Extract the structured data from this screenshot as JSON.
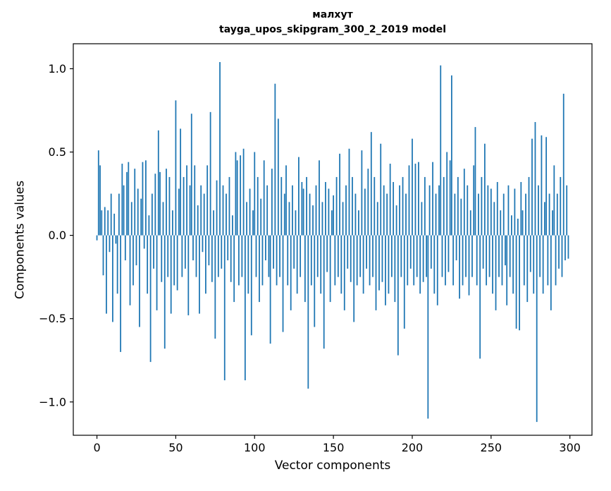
{
  "title": "малхут",
  "subtitle": "tayga_upos_skipgram_300_2_2019 model",
  "chart_data": {
    "type": "bar",
    "title": "малхут",
    "subtitle": "tayga_upos_skipgram_300_2_2019 model",
    "xlabel": "Vector components",
    "ylabel": "Components values",
    "x_ticks": [
      0,
      50,
      100,
      150,
      200,
      250,
      300
    ],
    "y_ticks": [
      -1.0,
      -0.5,
      0.0,
      0.5,
      1.0
    ],
    "xlim": [
      -15,
      314
    ],
    "ylim": [
      -1.2,
      1.15
    ],
    "bar_color": "#1f77b4",
    "grid": false,
    "legend": "none",
    "n_components": 300,
    "values": [
      -0.03,
      0.51,
      0.42,
      0.15,
      -0.24,
      0.17,
      -0.47,
      0.15,
      -0.1,
      0.25,
      -0.52,
      0.13,
      -0.05,
      -0.35,
      0.25,
      -0.7,
      0.43,
      0.3,
      -0.15,
      0.38,
      0.44,
      -0.42,
      0.2,
      -0.3,
      0.4,
      -0.18,
      0.28,
      -0.55,
      0.22,
      0.44,
      -0.08,
      0.45,
      -0.35,
      0.12,
      -0.76,
      0.25,
      -0.2,
      0.37,
      -0.45,
      0.63,
      0.38,
      -0.28,
      0.2,
      -0.68,
      0.4,
      -0.25,
      0.35,
      -0.47,
      0.15,
      -0.3,
      0.81,
      -0.33,
      0.28,
      0.64,
      -0.25,
      0.35,
      -0.2,
      0.42,
      -0.48,
      0.3,
      0.73,
      -0.15,
      0.42,
      -0.25,
      0.18,
      -0.47,
      0.3,
      -0.1,
      0.25,
      -0.35,
      0.42,
      -0.18,
      0.74,
      -0.28,
      0.15,
      -0.62,
      0.33,
      -0.25,
      1.04,
      -0.2,
      0.3,
      -0.87,
      0.25,
      -0.15,
      0.35,
      -0.28,
      0.12,
      -0.4,
      0.5,
      0.45,
      -0.3,
      0.48,
      -0.25,
      0.52,
      -0.87,
      0.2,
      -0.35,
      0.28,
      -0.6,
      0.15,
      0.5,
      -0.25,
      0.35,
      -0.4,
      0.22,
      -0.3,
      0.45,
      -0.15,
      0.3,
      -0.25,
      -0.65,
      0.4,
      -0.2,
      0.91,
      -0.3,
      0.7,
      -0.25,
      0.35,
      -0.58,
      0.25,
      0.42,
      -0.3,
      0.2,
      -0.45,
      0.3,
      -0.2,
      0.15,
      -0.35,
      0.47,
      -0.25,
      0.32,
      0.28,
      -0.4,
      0.35,
      -0.92,
      0.25,
      -0.3,
      0.18,
      -0.55,
      0.3,
      -0.25,
      0.45,
      -0.35,
      0.2,
      -0.68,
      0.32,
      -0.22,
      0.28,
      -0.4,
      0.15,
      0.24,
      -0.3,
      0.35,
      -0.25,
      0.49,
      -0.35,
      0.2,
      -0.45,
      0.3,
      -0.2,
      0.52,
      -0.28,
      0.35,
      -0.52,
      0.25,
      -0.3,
      0.15,
      -0.25,
      0.51,
      -0.35,
      0.28,
      -0.2,
      0.4,
      -0.3,
      0.62,
      -0.25,
      0.35,
      -0.45,
      0.2,
      -0.33,
      0.55,
      -0.28,
      0.3,
      -0.42,
      0.25,
      -0.35,
      0.43,
      -0.25,
      0.32,
      -0.4,
      0.18,
      -0.72,
      0.3,
      -0.25,
      0.35,
      -0.56,
      0.25,
      -0.3,
      0.42,
      -0.2,
      0.58,
      -0.3,
      0.43,
      -0.25,
      0.44,
      -0.35,
      0.2,
      -0.28,
      0.35,
      -0.25,
      -1.1,
      0.3,
      -0.2,
      0.44,
      -0.35,
      0.25,
      -0.42,
      0.3,
      1.02,
      -0.25,
      0.35,
      -0.3,
      0.5,
      -0.22,
      0.45,
      0.96,
      -0.3,
      0.25,
      -0.15,
      0.35,
      -0.38,
      0.22,
      -0.3,
      0.4,
      -0.25,
      0.3,
      -0.36,
      0.15,
      -0.25,
      0.42,
      0.65,
      -0.3,
      0.25,
      -0.74,
      0.35,
      -0.2,
      0.55,
      -0.3,
      0.3,
      -0.25,
      0.28,
      -0.35,
      0.2,
      -0.45,
      0.32,
      -0.25,
      0.15,
      -0.3,
      0.25,
      -0.18,
      -0.42,
      0.3,
      -0.25,
      0.12,
      -0.35,
      0.28,
      -0.56,
      0.1,
      -0.57,
      0.32,
      0.15,
      -0.3,
      0.25,
      -0.4,
      0.35,
      -0.22,
      0.58,
      -0.35,
      0.68,
      -1.12,
      0.3,
      -0.25,
      0.6,
      -0.35,
      0.2,
      0.59,
      -0.3,
      0.25,
      -0.45,
      0.15,
      0.42,
      -0.3,
      0.25,
      -0.2,
      0.35,
      -0.25,
      0.85,
      -0.15,
      0.3,
      -0.14
    ]
  }
}
